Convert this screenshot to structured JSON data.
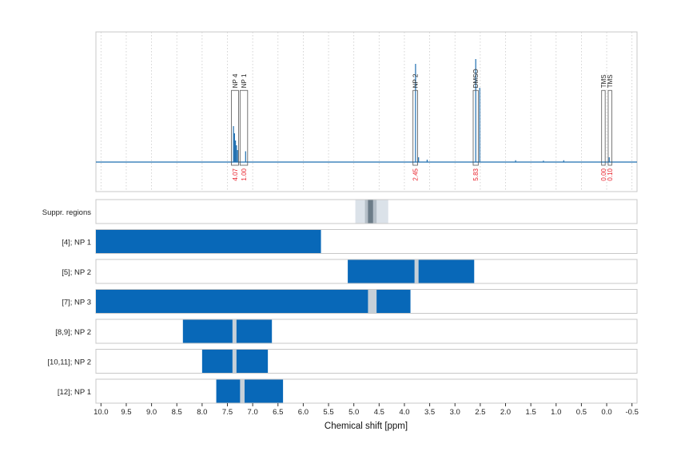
{
  "colors": {
    "spectrum": "#1f6fb0",
    "bar": "#0868b8",
    "frame": "#c8c8c8",
    "integral": "#e8202a",
    "peak_box": "#555555",
    "band_light": "#dbe2e9",
    "band_mid": "#b5bfc8",
    "band_dark": "#6c7c88",
    "bar_gap": "#c6d0d8"
  },
  "chart_data": {
    "type": "nmr-spectrum",
    "xlabel": "Chemical shift [ppm]",
    "xlim": [
      10.1,
      -0.6
    ],
    "x_reversed": true,
    "x_ticks": [
      "10.0",
      "9.5",
      "9.0",
      "8.5",
      "8.0",
      "7.5",
      "7.0",
      "6.5",
      "6.0",
      "5.5",
      "5.0",
      "4.5",
      "4.0",
      "3.5",
      "3.0",
      "2.5",
      "2.0",
      "1.5",
      "1.0",
      "0.5",
      "0.0",
      "-0.5"
    ],
    "x_tick_values": [
      10.0,
      9.5,
      9.0,
      8.5,
      8.0,
      7.5,
      7.0,
      6.5,
      6.0,
      5.5,
      5.0,
      4.5,
      4.0,
      3.5,
      3.0,
      2.5,
      2.0,
      1.5,
      1.0,
      0.5,
      0.0,
      -0.5
    ],
    "spectrum_peaks": [
      {
        "ppm": 7.38,
        "height": 0.3
      },
      {
        "ppm": 7.36,
        "height": 0.24
      },
      {
        "ppm": 7.34,
        "height": 0.18
      },
      {
        "ppm": 7.32,
        "height": 0.14
      },
      {
        "ppm": 7.3,
        "height": 0.1
      },
      {
        "ppm": 7.14,
        "height": 0.09
      },
      {
        "ppm": 3.78,
        "height": 0.82
      },
      {
        "ppm": 3.72,
        "height": 0.04
      },
      {
        "ppm": 3.55,
        "height": 0.02
      },
      {
        "ppm": 2.59,
        "height": 0.86
      },
      {
        "ppm": 2.51,
        "height": 0.62
      },
      {
        "ppm": 1.8,
        "height": 0.015
      },
      {
        "ppm": 1.25,
        "height": 0.012
      },
      {
        "ppm": 0.85,
        "height": 0.015
      },
      {
        "ppm": -0.05,
        "height": 0.04
      }
    ],
    "annotated_peaks": [
      {
        "label": "NP 4",
        "integral": "4.07",
        "ppm_start": 7.42,
        "ppm_end": 7.28,
        "box_height": 0.88
      },
      {
        "label": "NP 1",
        "integral": "1.00",
        "ppm_start": 7.25,
        "ppm_end": 7.1,
        "box_height": 0.88
      },
      {
        "label": "NP 2",
        "integral": "2.45",
        "ppm_start": 3.83,
        "ppm_end": 3.74,
        "box_height": 0.88
      },
      {
        "label": "DMSO",
        "integral": "5.83",
        "ppm_start": 2.64,
        "ppm_end": 2.54,
        "box_height": 0.88
      },
      {
        "label": "TMS",
        "integral": "0.00",
        "ppm_start": 0.1,
        "ppm_end": 0.03,
        "box_height": 0.88
      },
      {
        "label": "TMS",
        "integral": "0.10",
        "ppm_start": -0.03,
        "ppm_end": -0.1,
        "box_height": 0.88
      }
    ],
    "rows": [
      {
        "label": "Suppr. regions",
        "type": "suppression",
        "bands": [
          {
            "from": 4.97,
            "to": 4.32,
            "shade": "light"
          },
          {
            "from": 4.78,
            "to": 4.55,
            "shade": "mid"
          },
          {
            "from": 4.72,
            "to": 4.62,
            "shade": "dark"
          }
        ]
      },
      {
        "label": "[4]; NP 1",
        "type": "bars",
        "bars": [
          {
            "from": 10.1,
            "to": 5.65
          }
        ],
        "gaps": []
      },
      {
        "label": "[5]; NP 2",
        "type": "bars",
        "bars": [
          {
            "from": 5.12,
            "to": 2.62
          }
        ],
        "gaps": [
          {
            "from": 3.8,
            "to": 3.72
          }
        ]
      },
      {
        "label": "[7]; NP 3",
        "type": "bars",
        "bars": [
          {
            "from": 10.1,
            "to": 3.88
          }
        ],
        "gaps": [
          {
            "from": 4.72,
            "to": 4.55
          }
        ]
      },
      {
        "label": "[8,9]; NP 2",
        "type": "bars",
        "bars": [
          {
            "from": 8.38,
            "to": 6.62
          }
        ],
        "gaps": [
          {
            "from": 7.4,
            "to": 7.32
          }
        ]
      },
      {
        "label": "[10,11]; NP 2",
        "type": "bars",
        "bars": [
          {
            "from": 8.0,
            "to": 6.7
          }
        ],
        "gaps": [
          {
            "from": 7.4,
            "to": 7.32
          }
        ]
      },
      {
        "label": "[12]; NP 1",
        "type": "bars",
        "bars": [
          {
            "from": 7.72,
            "to": 6.4
          }
        ],
        "gaps": [
          {
            "from": 7.25,
            "to": 7.16
          }
        ]
      }
    ]
  }
}
